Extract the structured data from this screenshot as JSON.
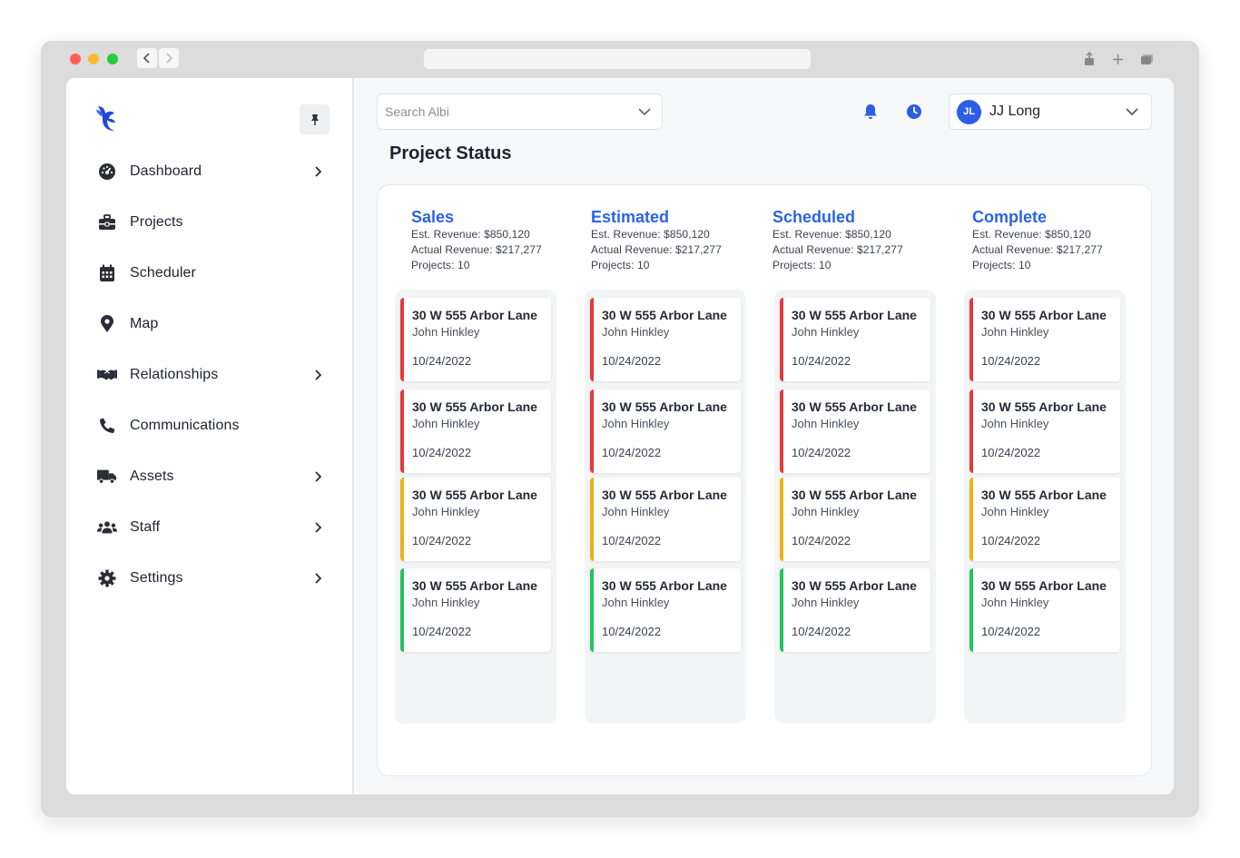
{
  "app": {
    "name": "Albi"
  },
  "colors": {
    "accent": "#2c63e6",
    "red": "#e5393a",
    "yellow": "#e9b416",
    "green": "#22c55e"
  },
  "sidebar": {
    "items": [
      {
        "label": "Dashboard",
        "icon": "gauge-icon",
        "chevron": true
      },
      {
        "label": "Projects",
        "icon": "toolbox-icon",
        "chevron": false
      },
      {
        "label": "Scheduler",
        "icon": "calendar-icon",
        "chevron": false
      },
      {
        "label": "Map",
        "icon": "map-pin-icon",
        "chevron": false
      },
      {
        "label": "Relationships",
        "icon": "handshake-icon",
        "chevron": true
      },
      {
        "label": "Communications",
        "icon": "phone-icon",
        "chevron": false
      },
      {
        "label": "Assets",
        "icon": "truck-icon",
        "chevron": true
      },
      {
        "label": "Staff",
        "icon": "users-icon",
        "chevron": true
      },
      {
        "label": "Settings",
        "icon": "gear-icon",
        "chevron": true
      }
    ]
  },
  "header": {
    "search_placeholder": "Search Albi",
    "user": {
      "initials": "JL",
      "name": "JJ Long"
    }
  },
  "page": {
    "title": "Project Status"
  },
  "columns": [
    {
      "title": "Sales",
      "est_revenue": "Est. Revenue: $850,120",
      "actual_revenue": "Actual Revenue: $217,277",
      "projects": "Projects: 10",
      "cards": [
        {
          "address": "30 W 555 Arbor Lane",
          "name": "John Hinkley",
          "date": "10/24/2022",
          "status": "red"
        },
        {
          "address": "30 W 555 Arbor Lane",
          "name": "John Hinkley",
          "date": "10/24/2022",
          "status": "red"
        },
        {
          "address": "30 W 555 Arbor Lane",
          "name": "John Hinkley",
          "date": "10/24/2022",
          "status": "yellow"
        },
        {
          "address": "30 W 555 Arbor Lane",
          "name": "John Hinkley",
          "date": "10/24/2022",
          "status": "green"
        }
      ]
    },
    {
      "title": "Estimated",
      "est_revenue": "Est. Revenue: $850,120",
      "actual_revenue": "Actual Revenue: $217,277",
      "projects": "Projects: 10",
      "cards": [
        {
          "address": "30 W 555 Arbor Lane",
          "name": "John Hinkley",
          "date": "10/24/2022",
          "status": "red"
        },
        {
          "address": "30 W 555 Arbor Lane",
          "name": "John Hinkley",
          "date": "10/24/2022",
          "status": "red"
        },
        {
          "address": "30 W 555 Arbor Lane",
          "name": "John Hinkley",
          "date": "10/24/2022",
          "status": "yellow"
        },
        {
          "address": "30 W 555 Arbor Lane",
          "name": "John Hinkley",
          "date": "10/24/2022",
          "status": "green"
        }
      ]
    },
    {
      "title": "Scheduled",
      "est_revenue": "Est. Revenue: $850,120",
      "actual_revenue": "Actual Revenue: $217,277",
      "projects": "Projects: 10",
      "cards": [
        {
          "address": "30 W 555 Arbor Lane",
          "name": "John Hinkley",
          "date": "10/24/2022",
          "status": "red"
        },
        {
          "address": "30 W 555 Arbor Lane",
          "name": "John Hinkley",
          "date": "10/24/2022",
          "status": "red"
        },
        {
          "address": "30 W 555 Arbor Lane",
          "name": "John Hinkley",
          "date": "10/24/2022",
          "status": "yellow"
        },
        {
          "address": "30 W 555 Arbor Lane",
          "name": "John Hinkley",
          "date": "10/24/2022",
          "status": "green"
        }
      ]
    },
    {
      "title": "Complete",
      "est_revenue": "Est. Revenue: $850,120",
      "actual_revenue": "Actual Revenue: $217,277",
      "projects": "Projects: 10",
      "cards": [
        {
          "address": "30 W 555 Arbor Lane",
          "name": "John Hinkley",
          "date": "10/24/2022",
          "status": "red"
        },
        {
          "address": "30 W 555 Arbor Lane",
          "name": "John Hinkley",
          "date": "10/24/2022",
          "status": "red"
        },
        {
          "address": "30 W 555 Arbor Lane",
          "name": "John Hinkley",
          "date": "10/24/2022",
          "status": "yellow"
        },
        {
          "address": "30 W 555 Arbor Lane",
          "name": "John Hinkley",
          "date": "10/24/2022",
          "status": "green"
        }
      ]
    }
  ]
}
